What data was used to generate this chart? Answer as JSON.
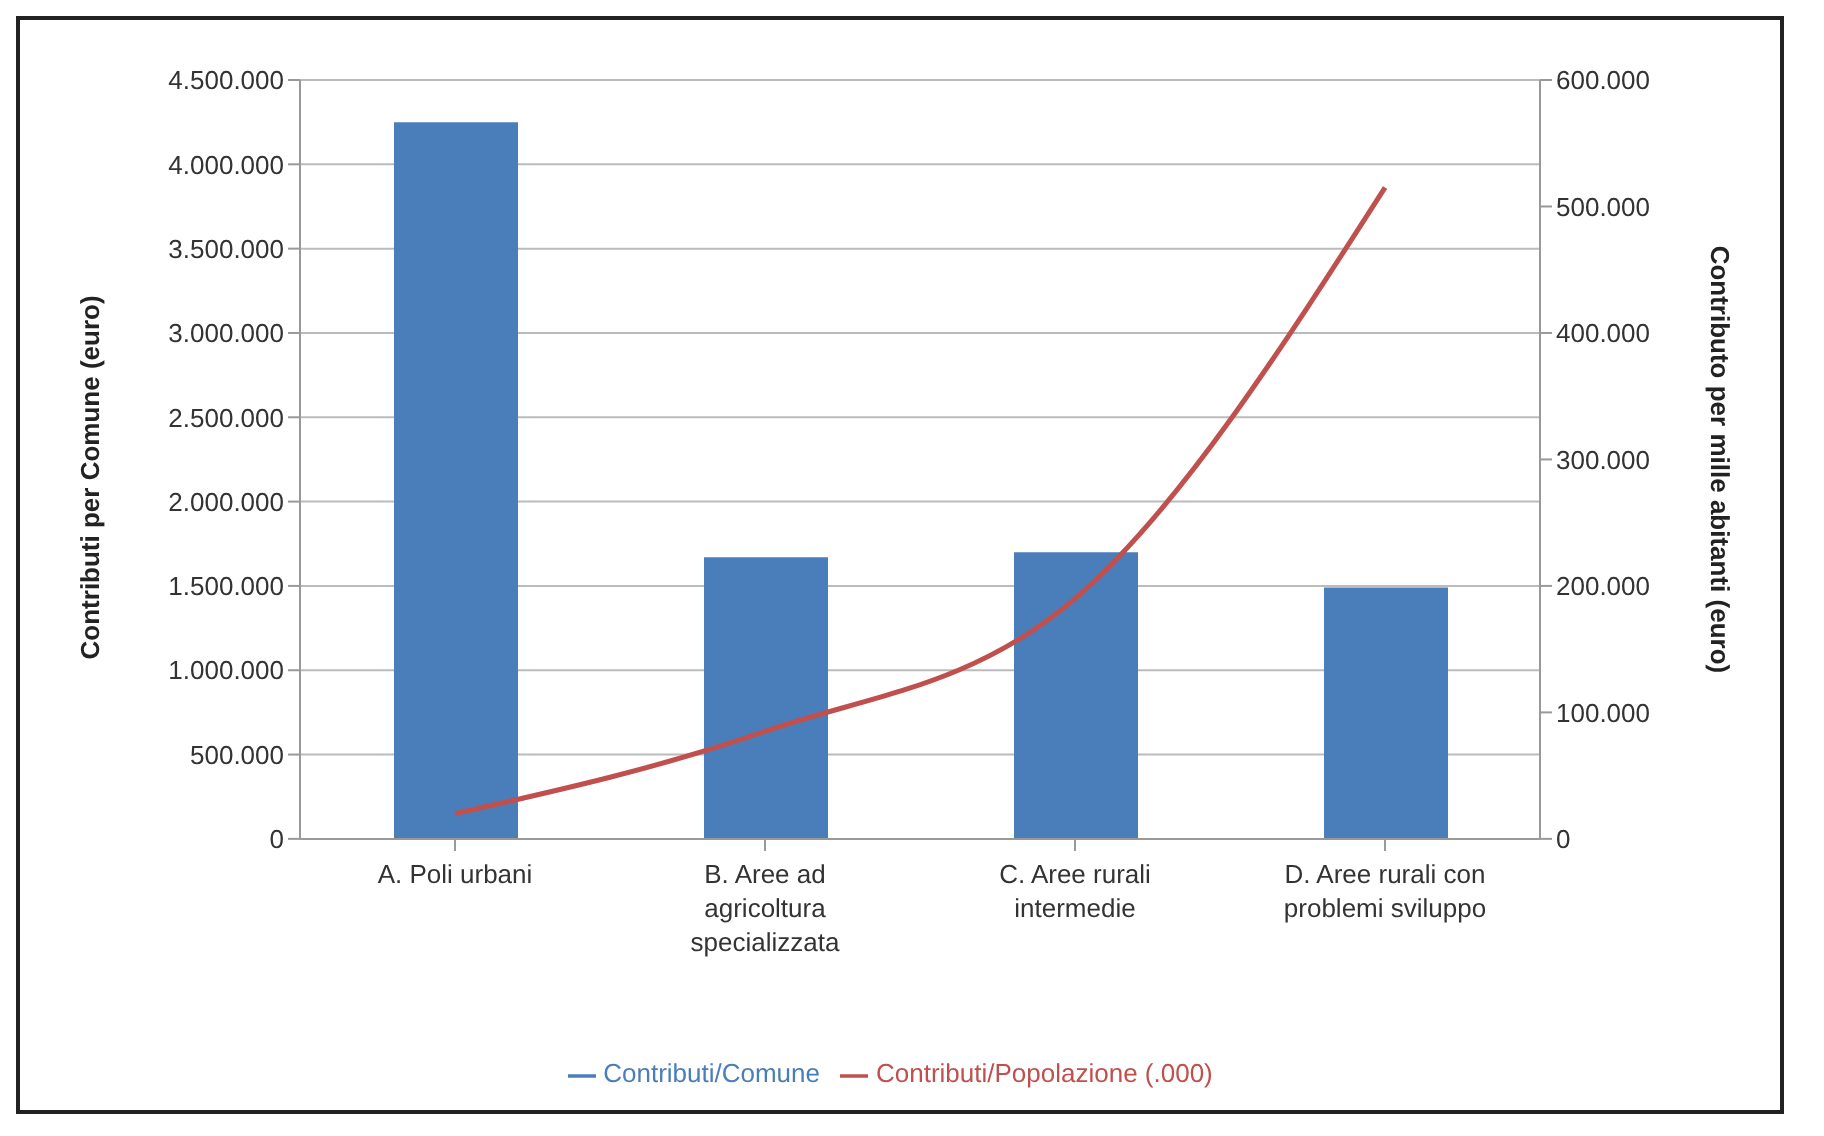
{
  "chart_data": {
    "type": "bar",
    "categories": [
      "A. Poli urbani",
      "B. Aree ad agricoltura specializzata",
      "C. Aree rurali intermedie",
      "D. Aree rurali con problemi sviluppo"
    ],
    "series": [
      {
        "name": "Contributi/Comune",
        "color": "#4a7ebb",
        "values": [
          4250000,
          1670000,
          1700000,
          1490000
        ]
      },
      {
        "name": "Contributi/Popolazione (.000)",
        "type": "line",
        "axis": "y2",
        "color": "#c0504d",
        "values": [
          20000,
          85000,
          190000,
          515000
        ]
      }
    ],
    "ylabel": "Contributi per Comune (euro)",
    "y2label": "Contributo per mille abitanti (euro)",
    "ylim": [
      0,
      4500000
    ],
    "yticks": [
      0,
      {
        "value": 500000,
        "label": "500.000"
      },
      {
        "value": 1000000,
        "label": "1.000.000"
      },
      {
        "value": 1500000,
        "label": "1.500.000"
      },
      {
        "value": 2000000,
        "label": "2.000.000"
      },
      {
        "value": 2500000,
        "label": "2.500.000"
      },
      {
        "value": 3000000,
        "label": "3.000.000"
      },
      {
        "value": 3500000,
        "label": "3.500.000"
      },
      {
        "value": 4000000,
        "label": "4.000.000"
      },
      {
        "value": 4500000,
        "label": "4.500.000"
      }
    ],
    "y2lim": [
      0,
      600000
    ],
    "y2ticks": [
      0,
      {
        "value": 100000,
        "label": "100.000"
      },
      {
        "value": 200000,
        "label": "200.000"
      },
      {
        "value": 300000,
        "label": "300.000"
      },
      {
        "value": 400000,
        "label": "400.000"
      },
      {
        "value": 500000,
        "label": "500.000"
      },
      {
        "value": 600000,
        "label": "600.000"
      }
    ],
    "grid": "y",
    "legend": "bottom",
    "marker": "none"
  }
}
